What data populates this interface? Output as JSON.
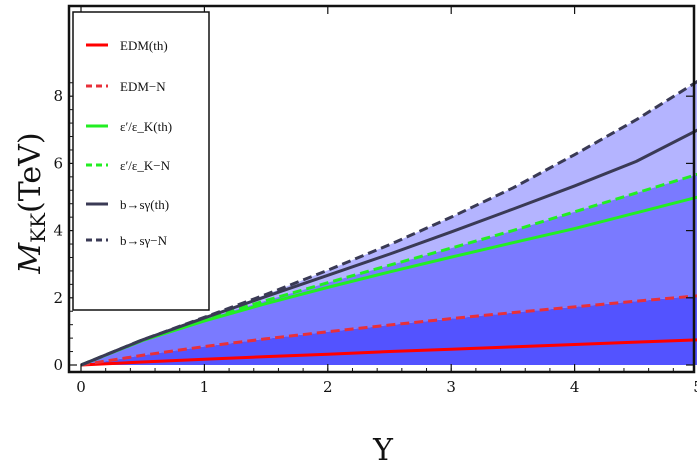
{
  "chart_data": {
    "type": "line",
    "xlabel": "Y",
    "ylabel": "M_KK(TeV)",
    "xlim": [
      0,
      5
    ],
    "ylim": [
      -0.15,
      8.6
    ],
    "xticks": [
      0,
      1,
      2,
      3,
      4,
      5
    ],
    "yticks": [
      0,
      2,
      4,
      6,
      8
    ],
    "grid": false,
    "legend_position": "top-left",
    "x": [
      0,
      0.5,
      1,
      1.5,
      2,
      2.5,
      3,
      3.5,
      4,
      4.5,
      5
    ],
    "series": [
      {
        "name": "EDM(th)",
        "color": "#ff0000",
        "dash": "solid",
        "values": [
          0,
          0.09,
          0.17,
          0.25,
          0.32,
          0.4,
          0.47,
          0.54,
          0.61,
          0.68,
          0.75
        ]
      },
      {
        "name": "EDM−N",
        "color": "#e8303a",
        "dash": "dashed",
        "values": [
          0,
          0.29,
          0.55,
          0.78,
          0.99,
          1.19,
          1.38,
          1.56,
          1.73,
          1.9,
          2.06
        ]
      },
      {
        "name": "ε′/ε_K(th)",
        "color": "#22ee22",
        "dash": "solid",
        "values": [
          0,
          0.73,
          1.31,
          1.83,
          2.31,
          2.77,
          3.21,
          3.64,
          4.06,
          4.53,
          5.0
        ]
      },
      {
        "name": "ε′/ε_K−N",
        "color": "#22ee22",
        "dash": "dashed",
        "values": [
          0,
          0.75,
          1.36,
          1.92,
          2.45,
          2.97,
          3.48,
          4.0,
          4.56,
          5.12,
          5.68
        ]
      },
      {
        "name": "b→sγ(th)",
        "color": "#3a3a55",
        "dash": "solid",
        "values": [
          0,
          0.75,
          1.4,
          2.04,
          2.67,
          3.3,
          3.96,
          4.64,
          5.33,
          6.06,
          7.0
        ]
      },
      {
        "name": "b→sγ−N",
        "color": "#3a3a55",
        "dash": "dashed",
        "values": [
          0,
          0.75,
          1.42,
          2.1,
          2.82,
          3.58,
          4.4,
          5.27,
          6.26,
          7.3,
          8.45
        ]
      }
    ],
    "bands": [
      {
        "upper": "b→sγ−N",
        "lower": "ε′/ε_K−N",
        "color": "#b4b4ff"
      },
      {
        "upper": "ε′/ε_K−N",
        "lower": "EDM−N",
        "color": "#7a7aff"
      },
      {
        "upper": "EDM−N",
        "lower": "zero",
        "color": "#5353ff"
      }
    ]
  }
}
